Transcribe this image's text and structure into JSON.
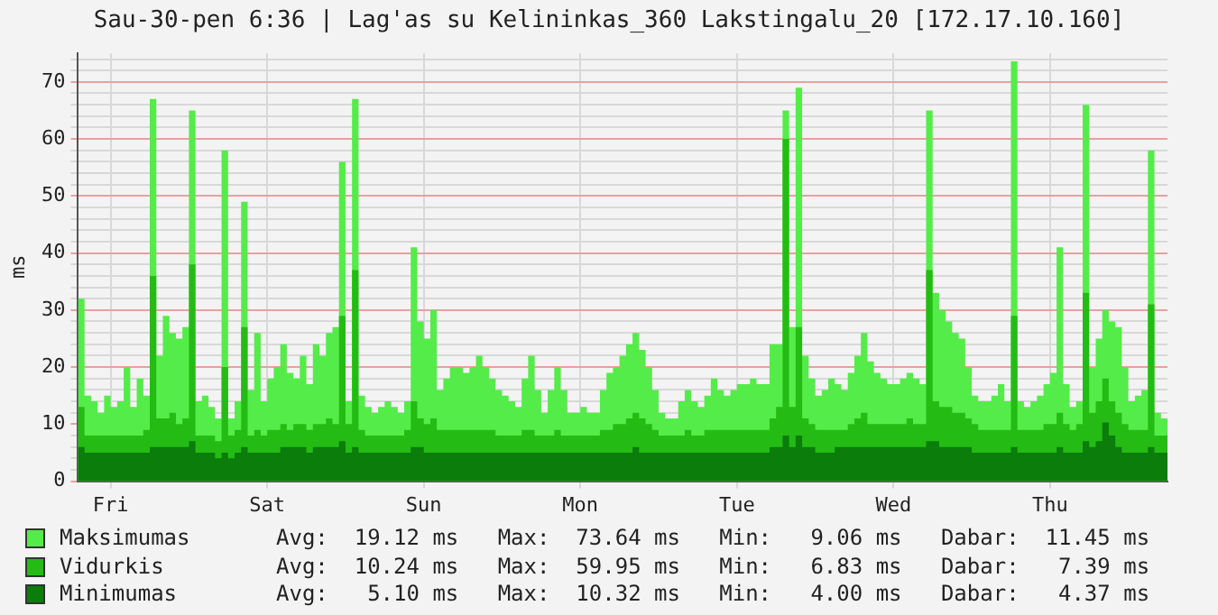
{
  "chart_data": {
    "type": "area",
    "title": "Sau-30-pen 6:36 | Lag'as su Kelininkas_360 Lakstingalu_20 [172.17.10.160]",
    "ylabel": "ms",
    "categories": [
      null,
      null,
      null,
      null,
      null,
      "Fri",
      null,
      null,
      null,
      null,
      null,
      null,
      null,
      null,
      null,
      null,
      null,
      null,
      null,
      null,
      null,
      null,
      null,
      null,
      null,
      null,
      null,
      null,
      null,
      "Sat",
      null,
      null,
      null,
      null,
      null,
      null,
      null,
      null,
      null,
      null,
      null,
      null,
      null,
      null,
      null,
      null,
      null,
      null,
      null,
      null,
      null,
      null,
      null,
      "Sun",
      null,
      null,
      null,
      null,
      null,
      null,
      null,
      null,
      null,
      null,
      null,
      null,
      null,
      null,
      null,
      null,
      null,
      null,
      null,
      null,
      null,
      null,
      null,
      "Mon",
      null,
      null,
      null,
      null,
      null,
      null,
      null,
      null,
      null,
      null,
      null,
      null,
      null,
      null,
      null,
      null,
      null,
      null,
      null,
      null,
      null,
      null,
      null,
      "Tue",
      null,
      null,
      null,
      null,
      null,
      null,
      null,
      null,
      null,
      null,
      null,
      null,
      null,
      null,
      null,
      null,
      null,
      null,
      null,
      null,
      null,
      null,
      null,
      "Wed",
      null,
      null,
      null,
      null,
      null,
      null,
      null,
      null,
      null,
      null,
      null,
      null,
      null,
      null,
      null,
      null,
      null,
      null,
      null,
      null,
      null,
      null,
      null,
      "Thu",
      null,
      null,
      null,
      null,
      null,
      null,
      null,
      null,
      null,
      null,
      null,
      null,
      null,
      null,
      null,
      null,
      null,
      null
    ],
    "series": [
      {
        "name": "Maksimumas",
        "color": "#54ec48",
        "values": [
          32,
          15,
          14,
          12,
          15,
          13,
          14,
          20,
          13,
          18,
          15,
          67,
          22,
          29,
          26,
          25,
          27,
          65,
          14,
          15,
          13,
          11,
          58,
          11,
          14,
          49,
          16,
          26,
          14,
          18,
          20,
          24,
          19,
          18,
          22,
          17,
          24,
          22,
          26,
          27,
          56,
          14,
          67,
          15,
          13,
          12,
          13,
          14,
          13,
          12,
          14,
          41,
          28,
          25,
          30,
          16,
          18,
          20,
          20,
          19,
          20,
          22,
          20,
          18,
          16,
          15,
          14,
          13,
          18,
          22,
          16,
          12,
          16,
          20,
          16,
          12,
          12,
          13,
          12,
          12,
          16,
          19,
          20,
          22,
          24,
          26,
          23,
          20,
          16,
          12,
          11,
          11,
          14,
          16,
          14,
          13,
          15,
          18,
          16,
          15,
          16,
          17,
          17,
          18,
          17,
          17,
          24,
          24,
          65,
          27,
          69,
          22,
          18,
          15,
          16,
          18,
          17,
          16,
          19,
          22,
          26,
          21,
          19,
          18,
          17,
          17,
          18,
          19,
          18,
          17,
          65,
          33,
          30,
          28,
          26,
          25,
          20,
          15,
          14,
          14,
          15,
          17,
          14,
          73.6,
          14,
          13,
          14,
          15,
          17,
          19,
          41,
          17,
          13,
          14,
          66,
          20,
          25,
          30,
          28,
          27,
          20,
          14,
          15,
          16,
          58,
          12,
          11,
          11
        ]
      },
      {
        "name": "Vidurkis",
        "color": "#24bc14",
        "values": [
          13,
          8,
          8,
          8,
          8,
          8,
          8,
          8,
          8,
          8,
          9,
          36,
          11,
          11,
          12,
          10,
          11,
          38,
          8,
          8,
          8,
          7,
          20,
          8,
          9,
          27,
          8,
          9,
          8,
          9,
          9,
          10,
          9,
          10,
          10,
          9,
          10,
          10,
          11,
          10,
          29,
          10,
          37,
          9,
          8,
          8,
          8,
          8,
          8,
          8,
          9,
          14,
          11,
          10,
          11,
          9,
          9,
          9,
          9,
          9,
          9,
          9,
          9,
          9,
          8,
          8,
          8,
          8,
          9,
          9,
          8,
          8,
          8,
          9,
          8,
          8,
          8,
          8,
          8,
          8,
          9,
          9,
          10,
          10,
          11,
          12,
          11,
          10,
          9,
          8,
          8,
          8,
          8,
          9,
          8,
          8,
          9,
          9,
          9,
          9,
          9,
          9,
          9,
          9,
          9,
          9,
          11,
          13,
          60,
          13,
          27,
          11,
          10,
          9,
          9,
          9,
          9,
          9,
          10,
          11,
          12,
          10,
          10,
          10,
          10,
          10,
          10,
          11,
          10,
          10,
          37,
          14,
          13,
          13,
          12,
          12,
          11,
          10,
          9,
          9,
          9,
          9,
          9,
          29,
          9,
          9,
          9,
          9,
          10,
          10,
          12,
          10,
          9,
          10,
          33,
          12,
          14,
          18,
          14,
          12,
          10,
          9,
          9,
          9,
          31,
          8,
          8,
          7
        ]
      },
      {
        "name": "Minimumas",
        "color": "#0a7d0a",
        "values": [
          6,
          5,
          5,
          5,
          5,
          5,
          5,
          5,
          5,
          5,
          5,
          6,
          6,
          6,
          6,
          6,
          6,
          7,
          5,
          5,
          5,
          4,
          5,
          4,
          5,
          6,
          5,
          5,
          5,
          5,
          5,
          6,
          6,
          6,
          6,
          5,
          6,
          6,
          6,
          6,
          7,
          5,
          6,
          5,
          5,
          5,
          5,
          5,
          5,
          5,
          5,
          6,
          6,
          5,
          5,
          5,
          5,
          5,
          5,
          5,
          5,
          5,
          5,
          5,
          5,
          5,
          5,
          5,
          5,
          5,
          5,
          5,
          5,
          5,
          5,
          5,
          5,
          5,
          5,
          5,
          5,
          5,
          5,
          5,
          5,
          6,
          5,
          5,
          5,
          5,
          5,
          5,
          5,
          5,
          5,
          5,
          5,
          5,
          5,
          5,
          5,
          5,
          5,
          5,
          5,
          5,
          6,
          6,
          8,
          6,
          8,
          6,
          6,
          5,
          5,
          5,
          6,
          6,
          6,
          6,
          6,
          6,
          6,
          6,
          6,
          6,
          6,
          6,
          6,
          6,
          7,
          7,
          6,
          6,
          6,
          6,
          6,
          5,
          5,
          5,
          5,
          5,
          5,
          6,
          5,
          5,
          5,
          5,
          5,
          5,
          6,
          5,
          5,
          5,
          7,
          6,
          7,
          10.3,
          8,
          6,
          5,
          5,
          5,
          5,
          6,
          5,
          5,
          4.4
        ]
      }
    ],
    "annotations": [
      "Avg:  19.12 ms   Max:  73.64 ms   Min:   9.06 ms   Dabar:  11.45 ms",
      "Avg:  10.24 ms   Max:  59.95 ms   Min:   6.83 ms   Dabar:   7.39 ms",
      "Avg:   5.10 ms   Max:  10.32 ms   Min:   4.00 ms   Dabar:   4.37 ms"
    ],
    "ylim": [
      0,
      75
    ],
    "yticks": [
      0,
      {
        "value": 2,
        "label": null
      },
      {
        "value": 4,
        "label": null
      },
      {
        "value": 6,
        "label": null
      },
      {
        "value": 8,
        "label": null
      },
      10,
      {
        "value": 12,
        "label": null
      },
      {
        "value": 14,
        "label": null
      },
      {
        "value": 16,
        "label": null
      },
      {
        "value": 18,
        "label": null
      },
      20,
      {
        "value": 22,
        "label": null
      },
      {
        "value": 24,
        "label": null
      },
      {
        "value": 26,
        "label": null
      },
      {
        "value": 28,
        "label": null
      },
      30,
      {
        "value": 32,
        "label": null
      },
      {
        "value": 34,
        "label": null
      },
      {
        "value": 36,
        "label": null
      },
      {
        "value": 38,
        "label": null
      },
      40,
      {
        "value": 42,
        "label": null
      },
      {
        "value": 44,
        "label": null
      },
      {
        "value": 46,
        "label": null
      },
      {
        "value": 48,
        "label": null
      },
      50,
      {
        "value": 52,
        "label": null
      },
      {
        "value": 54,
        "label": null
      },
      {
        "value": 56,
        "label": null
      },
      {
        "value": 58,
        "label": null
      },
      60,
      {
        "value": 62,
        "label": null
      },
      {
        "value": 64,
        "label": null
      },
      {
        "value": 66,
        "label": null
      },
      {
        "value": 68,
        "label": null
      },
      70,
      {
        "value": 72,
        "label": null
      },
      {
        "value": 74,
        "label": null
      }
    ],
    "grid": true,
    "legend": "bottom"
  }
}
